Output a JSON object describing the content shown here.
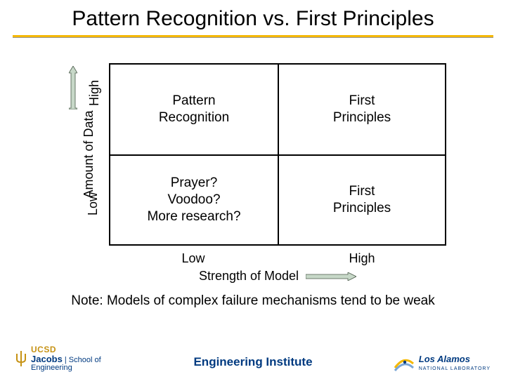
{
  "title": "Pattern Recognition vs. First Principles",
  "colors": {
    "accent_rule": "#f5b800",
    "text": "#000000",
    "footer_text": "#003a80",
    "arrow_fill": "#c7d8c8",
    "arrow_stroke": "#4a5a4a",
    "ucsd_gold": "#c69214",
    "la_swoosh1": "#f5b800",
    "la_swoosh2": "#7aa6d6"
  },
  "matrix": {
    "type": "2x2",
    "y_axis": {
      "label": "Amount of Data",
      "high": "High",
      "low": "Low"
    },
    "x_axis": {
      "label": "Strength of Model",
      "low": "Low",
      "high": "High"
    },
    "cells": {
      "high_low": "Pattern\nRecognition",
      "high_high": "First\nPrinciples",
      "low_low": "Prayer?\nVoodoo?\nMore research?",
      "low_high": "First\nPrinciples"
    },
    "cell_fontsize": 19,
    "axis_fontsize": 18,
    "border_color": "#000000",
    "border_width": 2
  },
  "note": "Note: Models of complex failure mechanisms tend to be weak",
  "footer": {
    "center": "Engineering Institute",
    "left": {
      "mark": "UCSD",
      "line1": "Jacobs",
      "line2": "School of",
      "line3": "Engineering"
    },
    "right": {
      "line1": "Los Alamos",
      "line2": "NATIONAL LABORATORY"
    }
  }
}
